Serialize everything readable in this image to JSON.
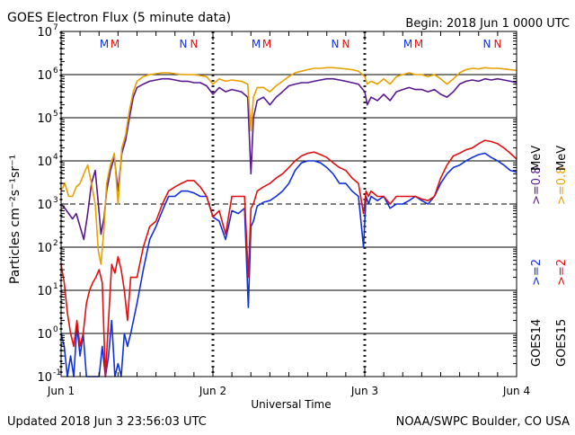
{
  "header": {
    "title": "GOES Electron Flux (5 minute data)",
    "begin": "Begin: 2018 Jun 1 0000 UTC"
  },
  "footer": {
    "updated": "Updated 2018 Jun  3 23:56:03 UTC",
    "credit": "NOAA/SWPC Boulder, CO USA"
  },
  "colors": {
    "goes14_2mev": "#1030e0",
    "goes15_2mev": "#e01010",
    "goes14_08mev": "#5a1890",
    "goes15_08mev": "#e8a000",
    "frame": "#000000"
  },
  "chart_data": {
    "type": "line",
    "xlabel": "Universal Time",
    "ylabel": "Particles cm⁻²s⁻¹sr⁻¹",
    "ylog": true,
    "ylim": [
      0.1,
      10000000
    ],
    "xlim": [
      0,
      72
    ],
    "x_units": "hours since 2018 Jun 1 0000 UTC",
    "x_ticks": [
      {
        "x": 0,
        "label": "Jun 1"
      },
      {
        "x": 24,
        "label": "Jun 2"
      },
      {
        "x": 48,
        "label": "Jun 3"
      },
      {
        "x": 72,
        "label": "Jun 4"
      }
    ],
    "y_ticks": [
      {
        "exp": -1,
        "label": "10",
        "sup": "-1"
      },
      {
        "exp": 0,
        "label": "10",
        "sup": "0"
      },
      {
        "exp": 1,
        "label": "10",
        "sup": "1"
      },
      {
        "exp": 2,
        "label": "10",
        "sup": "2"
      },
      {
        "exp": 3,
        "label": "10",
        "sup": "3"
      },
      {
        "exp": 4,
        "label": "10",
        "sup": "4"
      },
      {
        "exp": 5,
        "label": "10",
        "sup": "5"
      },
      {
        "exp": 6,
        "label": "10",
        "sup": "6"
      },
      {
        "exp": 7,
        "label": "10",
        "sup": "7"
      }
    ],
    "threshold": {
      "value": 1000,
      "style": "dashed"
    },
    "day_markers": [
      0,
      24,
      48
    ],
    "legend": [
      {
        "satellite": "GOES14",
        "text": ">=2",
        "color": "#1030e0"
      },
      {
        "satellite": "GOES14",
        "text": ">=0.8",
        "color": "#5a1890"
      },
      {
        "satellite": "GOES15",
        "text": ">=2",
        "color": "#e01010"
      },
      {
        "satellite": "GOES15",
        "text": ">=0.8",
        "color": "#e8a000"
      },
      {
        "text": "MeV"
      },
      {
        "text": "MeV"
      },
      {
        "text": "GOES14"
      },
      {
        "text": "GOES15"
      }
    ],
    "annotations": [
      {
        "day": 0,
        "marks": [
          {
            "text": "M",
            "color": "#1030e0"
          },
          {
            "text": "M",
            "color": "#e01010"
          },
          {
            "text": "N",
            "color": "#1030e0"
          },
          {
            "text": "N",
            "color": "#e01010"
          }
        ]
      },
      {
        "day": 1,
        "marks": [
          {
            "text": "M",
            "color": "#1030e0"
          },
          {
            "text": "M",
            "color": "#e01010"
          },
          {
            "text": "N",
            "color": "#1030e0"
          },
          {
            "text": "N",
            "color": "#e01010"
          }
        ]
      },
      {
        "day": 2,
        "marks": [
          {
            "text": "M",
            "color": "#1030e0"
          },
          {
            "text": "M",
            "color": "#e01010"
          },
          {
            "text": "N",
            "color": "#1030e0"
          },
          {
            "text": "N",
            "color": "#e01010"
          }
        ]
      }
    ],
    "series": [
      {
        "satellite": "GOES14",
        "energy": ">=0.8",
        "color": "#5a1890",
        "x": [
          0,
          0.6,
          1.2,
          1.8,
          2.4,
          3.0,
          3.6,
          4.2,
          4.8,
          5.4,
          5.9,
          6.3,
          6.8,
          7.2,
          7.8,
          8.4,
          9.0,
          9.6,
          10.2,
          10.8,
          11.4,
          12.0,
          13.0,
          14.0,
          15.0,
          16.0,
          17.0,
          18.0,
          19.0,
          20.0,
          21.0,
          22.0,
          23.0,
          24.0,
          25.0,
          26.0,
          27.0,
          28.5,
          29.5,
          30.0,
          30.4,
          31.0,
          32.0,
          33.0,
          34.0,
          35.0,
          36.0,
          37.0,
          38.0,
          39.0,
          40.0,
          41.0,
          42.0,
          43.0,
          44.0,
          45.0,
          46.0,
          47.0,
          48.0,
          48.4,
          49.0,
          50.0,
          51.0,
          52.0,
          53.0,
          54.0,
          55.0,
          56.0,
          57.0,
          58.0,
          59.0,
          60.0,
          61.0,
          62.0,
          63.0,
          64.0,
          65.0,
          66.0,
          67.0,
          68.0,
          69.0,
          70.0,
          71.0,
          72.0
        ],
        "y": [
          1000,
          800,
          600,
          450,
          600,
          300,
          150,
          600,
          3000,
          6000,
          1000,
          200,
          500,
          2000,
          6000,
          12000,
          2000,
          15000,
          30000,
          100000,
          300000,
          500000,
          600000,
          700000,
          750000,
          800000,
          800000,
          750000,
          700000,
          700000,
          650000,
          650000,
          550000,
          350000,
          500000,
          400000,
          450000,
          400000,
          300000,
          5000,
          100000,
          250000,
          300000,
          200000,
          300000,
          400000,
          550000,
          600000,
          650000,
          650000,
          700000,
          750000,
          800000,
          800000,
          750000,
          700000,
          650000,
          600000,
          400000,
          200000,
          300000,
          250000,
          350000,
          250000,
          400000,
          450000,
          500000,
          450000,
          450000,
          400000,
          450000,
          350000,
          300000,
          400000,
          600000,
          700000,
          750000,
          700000,
          800000,
          750000,
          800000,
          750000,
          700000,
          650000
        ]
      },
      {
        "satellite": "GOES15",
        "energy": ">=0.8",
        "color": "#e8a000",
        "x": [
          0,
          0.6,
          1.2,
          1.8,
          2.4,
          3.0,
          3.6,
          4.2,
          4.8,
          5.4,
          5.9,
          6.3,
          6.8,
          7.2,
          7.8,
          8.4,
          9.0,
          9.6,
          10.2,
          10.8,
          11.4,
          12.0,
          13.0,
          14.0,
          15.0,
          16.0,
          17.0,
          18.0,
          19.0,
          20.0,
          21.0,
          22.0,
          23.0,
          24.0,
          25.0,
          26.0,
          27.0,
          28.5,
          29.5,
          30.0,
          30.4,
          31.0,
          32.0,
          33.0,
          34.0,
          35.0,
          36.0,
          37.0,
          38.0,
          39.0,
          40.0,
          41.0,
          42.0,
          43.0,
          44.0,
          45.0,
          46.0,
          47.0,
          48.0,
          48.4,
          49.0,
          50.0,
          51.0,
          52.0,
          53.0,
          54.0,
          55.0,
          56.0,
          57.0,
          58.0,
          59.0,
          60.0,
          61.0,
          62.0,
          63.0,
          64.0,
          65.0,
          66.0,
          67.0,
          68.0,
          69.0,
          70.0,
          71.0,
          72.0
        ],
        "y": [
          2000,
          3000,
          1500,
          1500,
          2500,
          3000,
          5000,
          8000,
          3000,
          1000,
          80,
          40,
          300,
          3000,
          8000,
          15000,
          1000,
          20000,
          40000,
          150000,
          400000,
          700000,
          900000,
          1000000,
          1050000,
          1100000,
          1100000,
          1050000,
          1000000,
          1000000,
          1000000,
          950000,
          900000,
          600000,
          800000,
          700000,
          750000,
          700000,
          600000,
          50000,
          300000,
          500000,
          500000,
          400000,
          550000,
          700000,
          900000,
          1100000,
          1200000,
          1300000,
          1400000,
          1400000,
          1450000,
          1450000,
          1400000,
          1350000,
          1300000,
          1200000,
          900000,
          600000,
          700000,
          600000,
          800000,
          600000,
          900000,
          1000000,
          1100000,
          1000000,
          1000000,
          900000,
          1000000,
          800000,
          600000,
          800000,
          1100000,
          1300000,
          1400000,
          1350000,
          1450000,
          1400000,
          1400000,
          1350000,
          1300000,
          1250000
        ]
      },
      {
        "satellite": "GOES14",
        "energy": ">=2",
        "color": "#1030e0",
        "x": [
          0,
          0.5,
          1.0,
          1.5,
          2.0,
          2.5,
          3.0,
          3.5,
          4.0,
          4.5,
          5.0,
          5.5,
          6.0,
          6.5,
          7.0,
          7.5,
          8.0,
          8.5,
          9.0,
          9.5,
          10.0,
          10.5,
          11.0,
          12.0,
          13.0,
          14.0,
          15.0,
          16.0,
          17.0,
          18.0,
          19.0,
          20.0,
          21.0,
          22.0,
          23.0,
          24.0,
          25.0,
          26.0,
          27.0,
          28.0,
          29.0,
          29.6,
          30.0,
          30.4,
          31.0,
          32.0,
          33.0,
          34.0,
          35.0,
          36.0,
          37.0,
          38.0,
          39.0,
          40.0,
          41.0,
          42.0,
          43.0,
          44.0,
          45.0,
          46.0,
          47.0,
          47.8,
          48.2,
          48.6,
          49.0,
          50.0,
          51.0,
          52.0,
          53.0,
          54.0,
          55.0,
          56.0,
          57.0,
          58.0,
          59.0,
          60.0,
          61.0,
          62.0,
          63.0,
          64.0,
          65.0,
          66.0,
          67.0,
          68.0,
          69.0,
          70.0,
          71.0,
          72.0
        ],
        "y": [
          1,
          0.5,
          0.1,
          0.3,
          0.1,
          1.5,
          0.3,
          1,
          0.1,
          0.1,
          0.1,
          0.1,
          0.1,
          0.5,
          0.1,
          0.3,
          2,
          0.1,
          0.2,
          0.1,
          1,
          0.5,
          1,
          5,
          30,
          150,
          300,
          700,
          1500,
          1500,
          2000,
          2000,
          1800,
          1500,
          1500,
          500,
          400,
          150,
          700,
          600,
          800,
          4,
          300,
          400,
          900,
          1100,
          1200,
          1500,
          2000,
          3000,
          6000,
          9000,
          10000,
          10000,
          9000,
          7000,
          5000,
          3000,
          3000,
          2000,
          1500,
          100,
          1500,
          1000,
          1500,
          1200,
          1500,
          800,
          1000,
          1000,
          1200,
          1500,
          1200,
          1000,
          1500,
          3000,
          5000,
          7000,
          8000,
          10000,
          12000,
          14000,
          15000,
          12000,
          10000,
          8000,
          6000,
          5500
        ]
      },
      {
        "satellite": "GOES15",
        "energy": ">=2",
        "color": "#e01010",
        "x": [
          0,
          0.5,
          1.0,
          1.5,
          2.0,
          2.5,
          3.0,
          3.5,
          4.0,
          4.5,
          5.0,
          5.5,
          6.0,
          6.5,
          7.0,
          7.5,
          8.0,
          8.5,
          9.0,
          9.5,
          10.0,
          10.5,
          11.0,
          12.0,
          13.0,
          14.0,
          15.0,
          16.0,
          17.0,
          18.0,
          19.0,
          20.0,
          21.0,
          22.0,
          23.0,
          24.0,
          25.0,
          26.0,
          27.0,
          28.0,
          29.0,
          29.6,
          30.0,
          30.4,
          31.0,
          32.0,
          33.0,
          34.0,
          35.0,
          36.0,
          37.0,
          38.0,
          39.0,
          40.0,
          41.0,
          42.0,
          43.0,
          44.0,
          45.0,
          46.0,
          47.0,
          47.8,
          48.2,
          48.6,
          49.0,
          50.0,
          51.0,
          52.0,
          53.0,
          54.0,
          55.0,
          56.0,
          57.0,
          58.0,
          59.0,
          60.0,
          61.0,
          62.0,
          63.0,
          64.0,
          65.0,
          66.0,
          67.0,
          68.0,
          69.0,
          70.0,
          71.0,
          72.0
        ],
        "y": [
          40,
          15,
          3,
          1,
          0.5,
          2,
          0.5,
          1,
          5,
          10,
          15,
          20,
          30,
          15,
          0.1,
          2,
          40,
          25,
          60,
          30,
          10,
          2,
          20,
          20,
          100,
          300,
          400,
          1000,
          2000,
          2500,
          3000,
          3500,
          3500,
          2500,
          1500,
          500,
          700,
          200,
          1500,
          1500,
          1500,
          20,
          800,
          1000,
          2000,
          2500,
          3000,
          4000,
          5000,
          7000,
          10000,
          13000,
          15000,
          16000,
          14000,
          12000,
          9000,
          7000,
          6000,
          4000,
          3000,
          600,
          2000,
          1500,
          2000,
          1500,
          1500,
          1000,
          1500,
          1500,
          1500,
          1500,
          1300,
          1200,
          1500,
          4000,
          8000,
          13000,
          15000,
          18000,
          20000,
          25000,
          30000,
          28000,
          25000,
          20000,
          15000,
          11000
        ]
      }
    ]
  }
}
